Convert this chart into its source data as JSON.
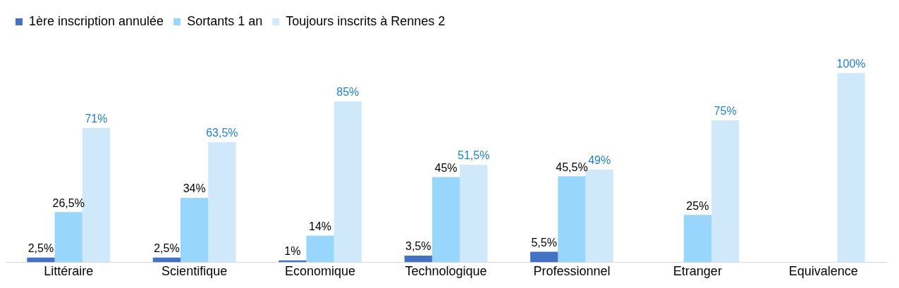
{
  "chart_data": {
    "type": "bar",
    "categories": [
      "Littéraire",
      "Scientifique",
      "Economique",
      "Technologique",
      "Professionnel",
      "Etranger",
      "Equivalence"
    ],
    "series": [
      {
        "name": "1ère inscription annulée",
        "color": "#4472c4",
        "values": [
          2.5,
          2.5,
          1,
          3.5,
          5.5,
          null,
          null
        ],
        "value_labels": [
          "2,5%",
          "2,5%",
          "1%",
          "3,5%",
          "5,5%",
          null,
          null
        ]
      },
      {
        "name": "Sortants 1 an",
        "color": "#99d6fd",
        "values": [
          26.5,
          34,
          14,
          45,
          45.5,
          25,
          null
        ],
        "value_labels": [
          "26,5%",
          "34%",
          "14%",
          "45%",
          "45,5%",
          "25%",
          null
        ]
      },
      {
        "name": "Toujours inscrits à Rennes 2",
        "color": "#cfe8fa",
        "values": [
          71,
          63.5,
          85,
          51.5,
          49,
          75,
          100
        ],
        "value_labels": [
          "71%",
          "63,5%",
          "85%",
          "51,5%",
          "49%",
          "75%",
          "100%"
        ]
      }
    ],
    "legend": "top left",
    "grid": false,
    "tick_labels": "x"
  }
}
